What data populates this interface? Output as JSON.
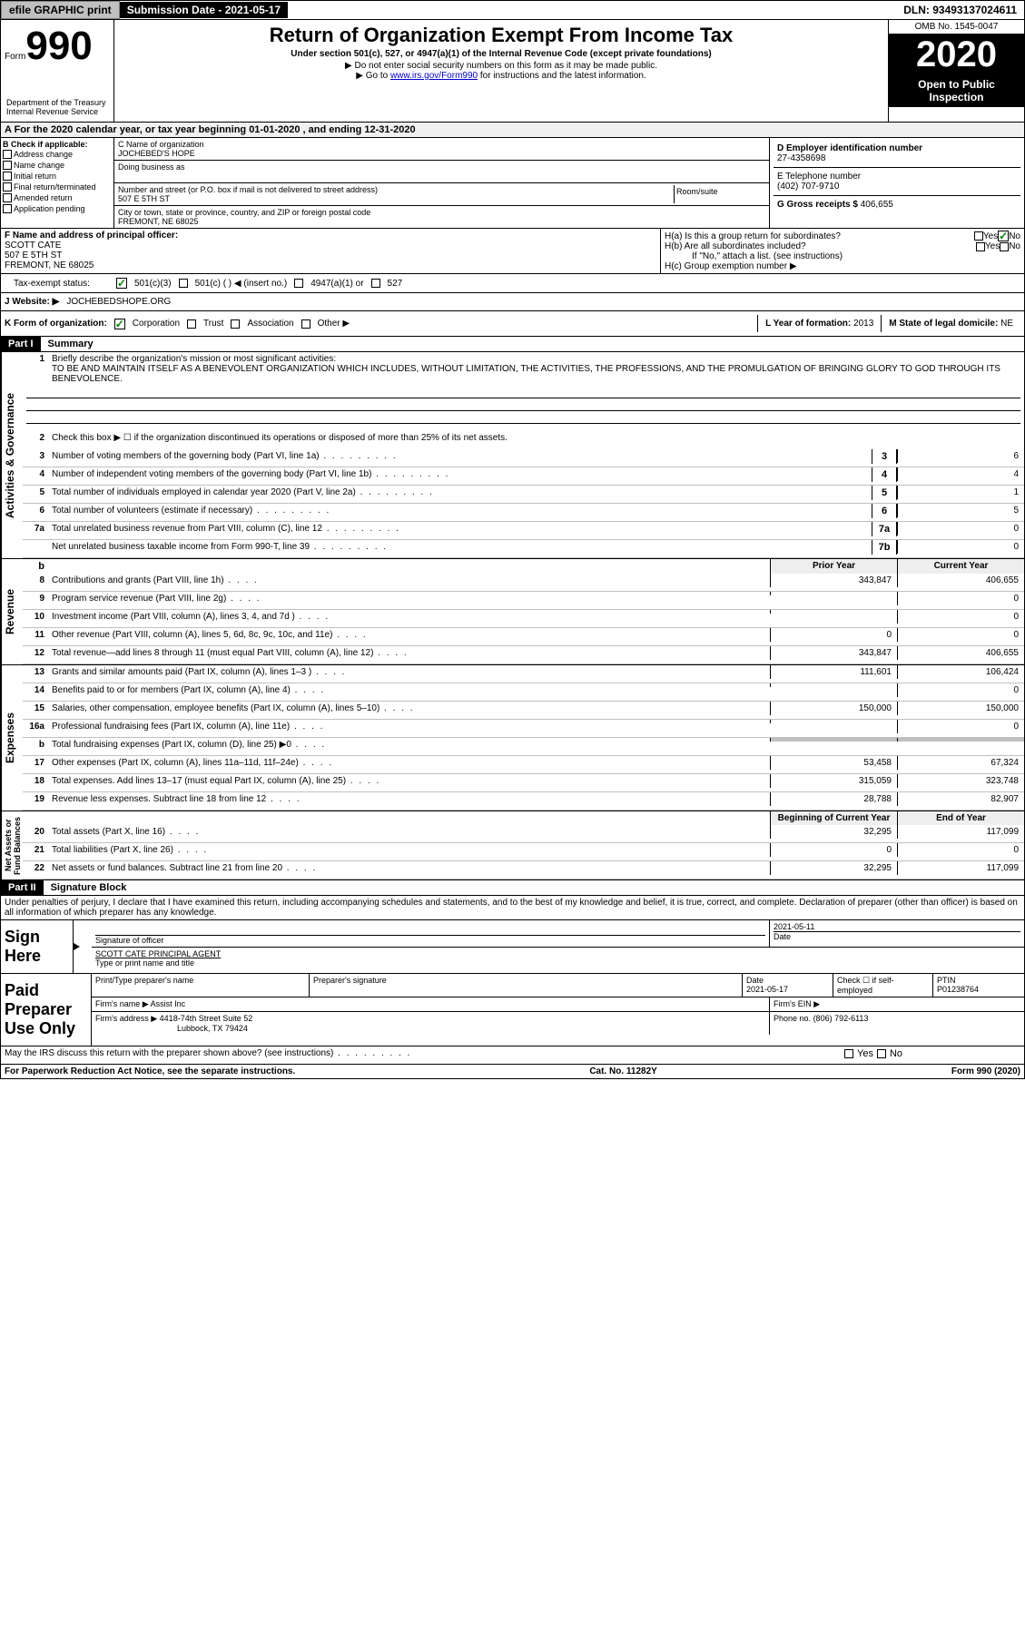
{
  "topbar": {
    "efile": "efile GRAPHIC print",
    "submission": "Submission Date - 2021-05-17",
    "dln": "DLN: 93493137024611"
  },
  "header": {
    "form_word": "Form",
    "form_num": "990",
    "title": "Return of Organization Exempt From Income Tax",
    "subtitle": "Under section 501(c), 527, or 4947(a)(1) of the Internal Revenue Code (except private foundations)",
    "inst1": "▶ Do not enter social security numbers on this form as it may be made public.",
    "inst2_pre": "▶ Go to ",
    "inst2_link": "www.irs.gov/Form990",
    "inst2_post": " for instructions and the latest information.",
    "omb": "OMB No. 1545-0047",
    "year": "2020",
    "open1": "Open to Public",
    "open2": "Inspection",
    "dept": "Department of the Treasury\nInternal Revenue Service"
  },
  "period": "A For the 2020 calendar year, or tax year beginning 01-01-2020    , and ending 12-31-2020",
  "section_b": {
    "label": "B Check if applicable:",
    "opts": [
      "Address change",
      "Name change",
      "Initial return",
      "Final return/terminated",
      "Amended return",
      "Application pending"
    ]
  },
  "section_c": {
    "name_label": "C Name of organization",
    "name": "JOCHEBED'S HOPE",
    "dba_label": "Doing business as",
    "addr_label": "Number and street (or P.O. box if mail is not delivered to street address)",
    "room_label": "Room/suite",
    "addr": "507 E 5TH ST",
    "city_label": "City or town, state or province, country, and ZIP or foreign postal code",
    "city": "FREMONT, NE  68025"
  },
  "section_d": {
    "ein_label": "D Employer identification number",
    "ein": "27-4358698",
    "phone_label": "E Telephone number",
    "phone": "(402) 707-9710",
    "gross_label": "G Gross receipts $",
    "gross": "406,655"
  },
  "section_f": {
    "label": "F Name and address of principal officer:",
    "name": "SCOTT CATE",
    "addr": "507 E 5TH ST",
    "city": "FREMONT, NE  68025"
  },
  "section_h": {
    "ha": "H(a)  Is this a group return for subordinates?",
    "hb": "H(b)  Are all subordinates included?",
    "hb_note": "If \"No,\" attach a list. (see instructions)",
    "hc": "H(c)  Group exemption number ▶",
    "yes": "Yes",
    "no": "No"
  },
  "tax_status": {
    "label": "Tax-exempt status:",
    "opt1": "501(c)(3)",
    "opt2": "501(c) (   ) ◀ (insert no.)",
    "opt3": "4947(a)(1) or",
    "opt4": "527"
  },
  "website": {
    "label": "J   Website: ▶",
    "value": "JOCHEBEDSHOPE.ORG"
  },
  "korg": {
    "label": "K Form of organization:",
    "opts": [
      "Corporation",
      "Trust",
      "Association",
      "Other ▶"
    ],
    "l_label": "L Year of formation:",
    "l_val": "2013",
    "m_label": "M State of legal domicile:",
    "m_val": "NE"
  },
  "part1": {
    "header": "Part I",
    "title": "Summary"
  },
  "vert": {
    "gov": "Activities & Governance",
    "rev": "Revenue",
    "exp": "Expenses",
    "net": "Net Assets or\nFund Balances"
  },
  "line1": {
    "label": "Briefly describe the organization's mission or most significant activities:",
    "text": "TO BE AND MAINTAIN ITSELF AS A BENEVOLENT ORGANIZATION WHICH INCLUDES, WITHOUT LIMITATION, THE ACTIVITIES, THE PROFESSIONS, AND THE PROMULGATION OF BRINGING GLORY TO GOD THROUGH ITS BENEVOLENCE."
  },
  "line2": "Check this box ▶ ☐  if the organization discontinued its operations or disposed of more than 25% of its net assets.",
  "lines_gov": [
    {
      "n": "3",
      "t": "Number of voting members of the governing body (Part VI, line 1a)",
      "b": "3",
      "v": "6"
    },
    {
      "n": "4",
      "t": "Number of independent voting members of the governing body (Part VI, line 1b)",
      "b": "4",
      "v": "4"
    },
    {
      "n": "5",
      "t": "Total number of individuals employed in calendar year 2020 (Part V, line 2a)",
      "b": "5",
      "v": "1"
    },
    {
      "n": "6",
      "t": "Total number of volunteers (estimate if necessary)",
      "b": "6",
      "v": "5"
    },
    {
      "n": "7a",
      "t": "Total unrelated business revenue from Part VIII, column (C), line 12",
      "b": "7a",
      "v": "0"
    },
    {
      "n": "",
      "t": "Net unrelated business taxable income from Form 990-T, line 39",
      "b": "7b",
      "v": "0"
    }
  ],
  "col_headers": {
    "b": "b",
    "prior": "Prior Year",
    "current": "Current Year",
    "begin": "Beginning of Current Year",
    "end": "End of Year"
  },
  "lines_rev": [
    {
      "n": "8",
      "t": "Contributions and grants (Part VIII, line 1h)",
      "p": "343,847",
      "c": "406,655"
    },
    {
      "n": "9",
      "t": "Program service revenue (Part VIII, line 2g)",
      "p": "",
      "c": "0"
    },
    {
      "n": "10",
      "t": "Investment income (Part VIII, column (A), lines 3, 4, and 7d )",
      "p": "",
      "c": "0"
    },
    {
      "n": "11",
      "t": "Other revenue (Part VIII, column (A), lines 5, 6d, 8c, 9c, 10c, and 11e)",
      "p": "0",
      "c": "0"
    },
    {
      "n": "12",
      "t": "Total revenue—add lines 8 through 11 (must equal Part VIII, column (A), line 12)",
      "p": "343,847",
      "c": "406,655"
    }
  ],
  "lines_exp": [
    {
      "n": "13",
      "t": "Grants and similar amounts paid (Part IX, column (A), lines 1–3 )",
      "p": "111,601",
      "c": "106,424"
    },
    {
      "n": "14",
      "t": "Benefits paid to or for members (Part IX, column (A), line 4)",
      "p": "",
      "c": "0"
    },
    {
      "n": "15",
      "t": "Salaries, other compensation, employee benefits (Part IX, column (A), lines 5–10)",
      "p": "150,000",
      "c": "150,000"
    },
    {
      "n": "16a",
      "t": "Professional fundraising fees (Part IX, column (A), line 11e)",
      "p": "",
      "c": "0"
    },
    {
      "n": "b",
      "t": "Total fundraising expenses (Part IX, column (D), line 25) ▶0",
      "p": "SHADE",
      "c": "SHADE"
    },
    {
      "n": "17",
      "t": "Other expenses (Part IX, column (A), lines 11a–11d, 11f–24e)",
      "p": "53,458",
      "c": "67,324"
    },
    {
      "n": "18",
      "t": "Total expenses. Add lines 13–17 (must equal Part IX, column (A), line 25)",
      "p": "315,059",
      "c": "323,748"
    },
    {
      "n": "19",
      "t": "Revenue less expenses. Subtract line 18 from line 12",
      "p": "28,788",
      "c": "82,907"
    }
  ],
  "lines_net": [
    {
      "n": "20",
      "t": "Total assets (Part X, line 16)",
      "p": "32,295",
      "c": "117,099"
    },
    {
      "n": "21",
      "t": "Total liabilities (Part X, line 26)",
      "p": "0",
      "c": "0"
    },
    {
      "n": "22",
      "t": "Net assets or fund balances. Subtract line 21 from line 20",
      "p": "32,295",
      "c": "117,099"
    }
  ],
  "part2": {
    "header": "Part II",
    "title": "Signature Block"
  },
  "declare": "Under penalties of perjury, I declare that I have examined this return, including accompanying schedules and statements, and to the best of my knowledge and belief, it is true, correct, and complete. Declaration of preparer (other than officer) is based on all information of which preparer has any knowledge.",
  "sign": {
    "label": "Sign Here",
    "sig_label": "Signature of officer",
    "date_label": "Date",
    "date": "2021-05-11",
    "name": "SCOTT CATE  PRINCIPAL AGENT",
    "type_label": "Type or print name and title"
  },
  "paid": {
    "label": "Paid Preparer Use Only",
    "h1": "Print/Type preparer's name",
    "h2": "Preparer's signature",
    "h3": "Date",
    "date": "2021-05-17",
    "h4": "Check ☐ if self-employed",
    "h5": "PTIN",
    "ptin": "P01238764",
    "firm_name_label": "Firm's name    ▶",
    "firm_name": "Assist Inc",
    "firm_ein_label": "Firm's EIN ▶",
    "firm_addr_label": "Firm's address ▶",
    "firm_addr1": "4418-74th Street Suite 52",
    "firm_addr2": "Lubbock, TX  79424",
    "phone_label": "Phone no.",
    "phone": "(806) 792-6113"
  },
  "discuss": "May the IRS discuss this return with the preparer shown above? (see instructions)",
  "footer": {
    "left": "For Paperwork Reduction Act Notice, see the separate instructions.",
    "mid": "Cat. No. 11282Y",
    "right": "Form 990 (2020)"
  }
}
